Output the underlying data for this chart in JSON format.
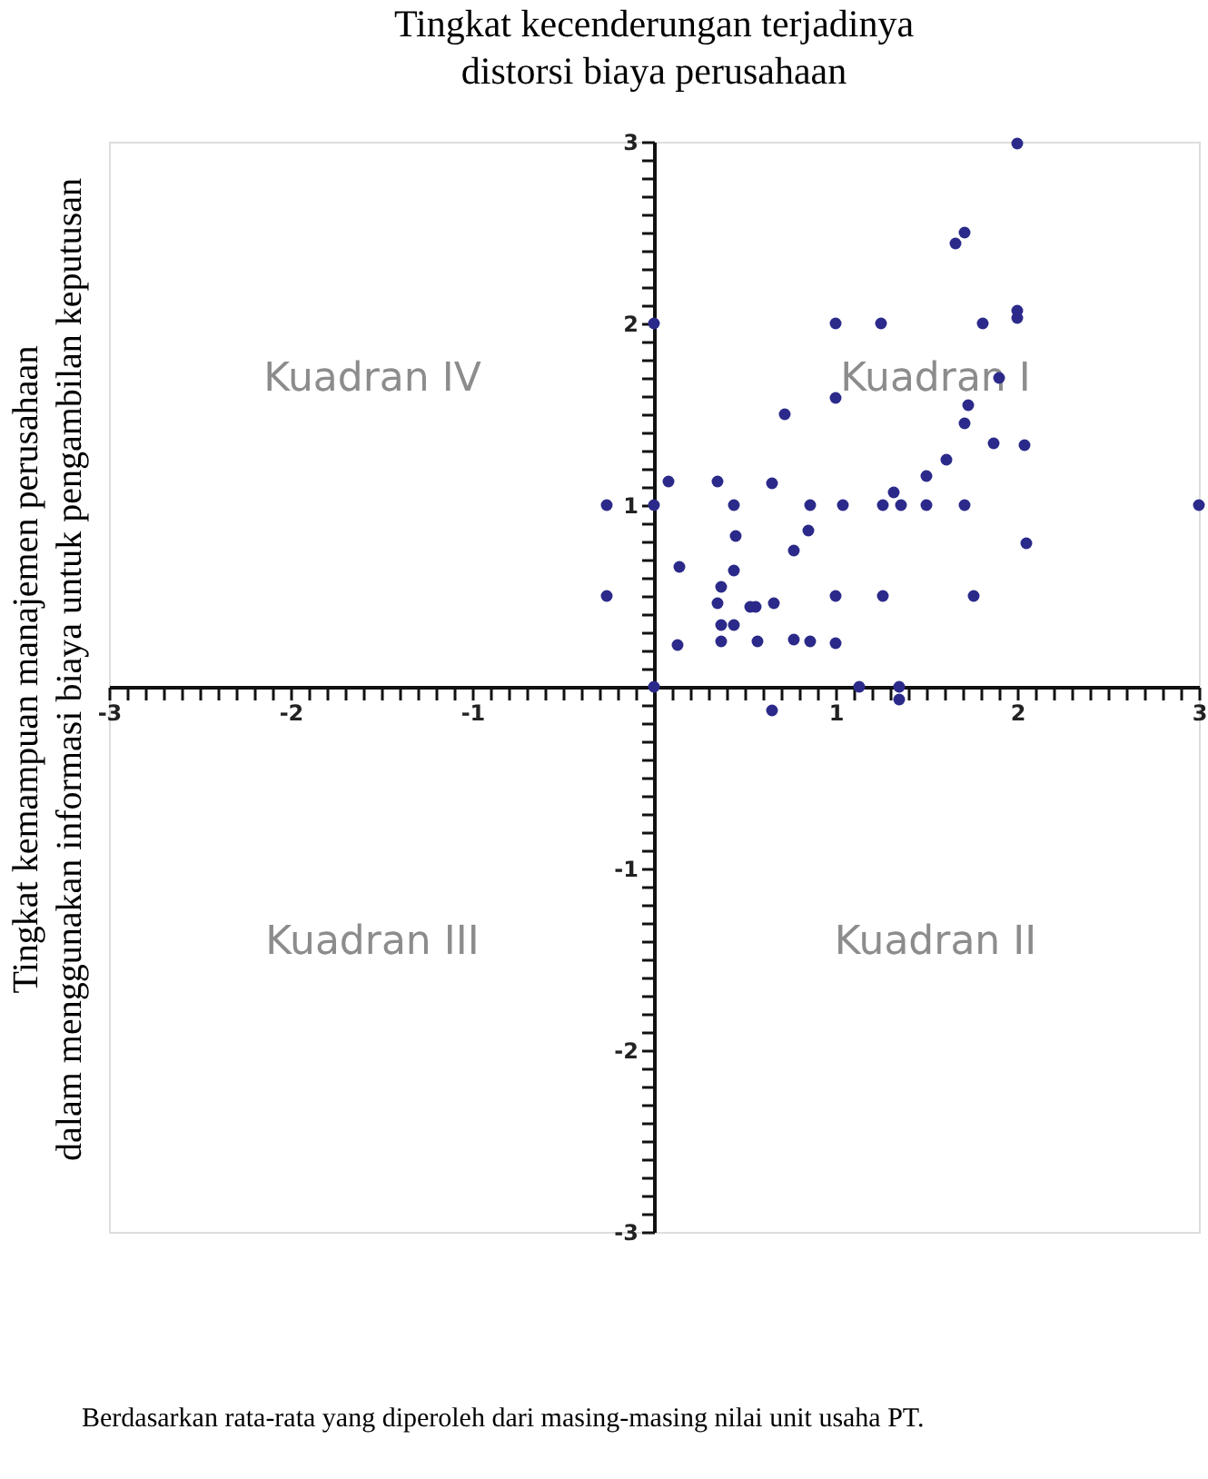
{
  "chart_data": {
    "type": "scatter",
    "title": "Tingkat kecenderungan terjadinya\ndistorsi biaya perusahaan",
    "ylabel": "Tingkat kemampuan manajemen perusahaan\ndalam menggunakan informasi biaya untuk pengambilan keputusan",
    "annotations": [
      "Kuadran IV",
      "Kuadran I",
      "Kuadran III",
      "Kuadran II",
      "Berdasarkan rata-rata yang diperoleh dari masing-masing nilai unit usaha PT."
    ],
    "x": [
      -0.26,
      -0.26,
      0,
      0,
      0,
      0.08,
      0.14,
      0.13,
      0.35,
      0.44,
      0.45,
      0.44,
      0.37,
      0.35,
      0.37,
      0.44,
      0.37,
      0.53,
      0.56,
      0.66,
      0.57,
      0.65,
      0.72,
      0.86,
      0.85,
      0.77,
      0.77,
      0.86,
      0.65,
      1.0,
      1.0,
      1.04,
      1.0,
      1.0,
      1.25,
      1.26,
      1.26,
      1.13,
      1.32,
      1.36,
      1.35,
      1.35,
      2.0,
      1.66,
      1.71,
      1.81,
      2.0,
      2.0,
      1.9,
      1.73,
      1.71,
      1.87,
      2.04,
      1.61,
      1.5,
      1.5,
      1.71,
      3.0,
      2.05,
      1.76
    ],
    "series": [
      {
        "color": "#2b2a8a",
        "values": [
          1.0,
          0.5,
          2.0,
          1.0,
          0.0,
          1.13,
          0.66,
          0.23,
          1.13,
          1.0,
          0.83,
          0.64,
          0.55,
          0.46,
          0.34,
          0.34,
          0.25,
          0.44,
          0.44,
          0.46,
          0.25,
          1.12,
          1.5,
          1.0,
          0.86,
          0.75,
          0.26,
          0.25,
          -0.13,
          2.0,
          1.59,
          1.0,
          0.5,
          0.24,
          2.0,
          1.0,
          0.5,
          0.0,
          1.07,
          1.0,
          0.0,
          -0.07,
          2.99,
          2.44,
          2.5,
          2.0,
          2.07,
          2.03,
          1.7,
          1.55,
          1.45,
          1.34,
          1.33,
          1.25,
          1.16,
          1.0,
          1.0,
          1.0,
          0.79,
          0.5
        ]
      }
    ],
    "xlim": [
      -3,
      3
    ],
    "ylim": [
      -3,
      3
    ],
    "xticks": [
      -3,
      {
        "value": -2.9,
        "label": null
      },
      {
        "value": -2.8,
        "label": null
      },
      {
        "value": -2.7,
        "label": null
      },
      {
        "value": -2.6,
        "label": null
      },
      {
        "value": -2.5,
        "label": null
      },
      {
        "value": -2.4,
        "label": null
      },
      {
        "value": -2.3,
        "label": null
      },
      {
        "value": -2.2,
        "label": null
      },
      {
        "value": -2.1,
        "label": null
      },
      -2,
      {
        "value": -1.9,
        "label": null
      },
      {
        "value": -1.8,
        "label": null
      },
      {
        "value": -1.7,
        "label": null
      },
      {
        "value": -1.6,
        "label": null
      },
      {
        "value": -1.5,
        "label": null
      },
      {
        "value": -1.4,
        "label": null
      },
      {
        "value": -1.3,
        "label": null
      },
      {
        "value": -1.2,
        "label": null
      },
      {
        "value": -1.1,
        "label": null
      },
      -1,
      {
        "value": -0.9,
        "label": null
      },
      {
        "value": -0.8,
        "label": null
      },
      {
        "value": -0.7,
        "label": null
      },
      {
        "value": -0.6,
        "label": null
      },
      {
        "value": -0.5,
        "label": null
      },
      {
        "value": -0.4,
        "label": null
      },
      {
        "value": -0.3,
        "label": null
      },
      {
        "value": -0.2,
        "label": null
      },
      {
        "value": -0.1,
        "label": null
      },
      {
        "value": 0,
        "label": null
      },
      {
        "value": 0.1,
        "label": null
      },
      {
        "value": 0.2,
        "label": null
      },
      {
        "value": 0.3,
        "label": null
      },
      {
        "value": 0.4,
        "label": null
      },
      {
        "value": 0.5,
        "label": null
      },
      {
        "value": 0.6,
        "label": null
      },
      {
        "value": 0.7,
        "label": null
      },
      {
        "value": 0.8,
        "label": null
      },
      {
        "value": 0.9,
        "label": null
      },
      1,
      {
        "value": 1.1,
        "label": null
      },
      {
        "value": 1.2,
        "label": null
      },
      {
        "value": 1.3,
        "label": null
      },
      {
        "value": 1.4,
        "label": null
      },
      {
        "value": 1.5,
        "label": null
      },
      {
        "value": 1.6,
        "label": null
      },
      {
        "value": 1.7,
        "label": null
      },
      {
        "value": 1.8,
        "label": null
      },
      {
        "value": 1.9,
        "label": null
      },
      2,
      {
        "value": 2.1,
        "label": null
      },
      {
        "value": 2.2,
        "label": null
      },
      {
        "value": 2.3,
        "label": null
      },
      {
        "value": 2.4,
        "label": null
      },
      {
        "value": 2.5,
        "label": null
      },
      {
        "value": 2.6,
        "label": null
      },
      {
        "value": 2.7,
        "label": null
      },
      {
        "value": 2.8,
        "label": null
      },
      {
        "value": 2.9,
        "label": null
      },
      3
    ],
    "yticks": [
      -3,
      {
        "value": -2.9,
        "label": null
      },
      {
        "value": -2.8,
        "label": null
      },
      {
        "value": -2.7,
        "label": null
      },
      {
        "value": -2.6,
        "label": null
      },
      {
        "value": -2.5,
        "label": null
      },
      {
        "value": -2.4,
        "label": null
      },
      {
        "value": -2.3,
        "label": null
      },
      {
        "value": -2.2,
        "label": null
      },
      {
        "value": -2.1,
        "label": null
      },
      -2,
      {
        "value": -1.9,
        "label": null
      },
      {
        "value": -1.8,
        "label": null
      },
      {
        "value": -1.7,
        "label": null
      },
      {
        "value": -1.6,
        "label": null
      },
      {
        "value": -1.5,
        "label": null
      },
      {
        "value": -1.4,
        "label": null
      },
      {
        "value": -1.3,
        "label": null
      },
      {
        "value": -1.2,
        "label": null
      },
      {
        "value": -1.1,
        "label": null
      },
      -1,
      {
        "value": -0.9,
        "label": null
      },
      {
        "value": -0.8,
        "label": null
      },
      {
        "value": -0.7,
        "label": null
      },
      {
        "value": -0.6,
        "label": null
      },
      {
        "value": -0.5,
        "label": null
      },
      {
        "value": -0.4,
        "label": null
      },
      {
        "value": -0.3,
        "label": null
      },
      {
        "value": -0.2,
        "label": null
      },
      {
        "value": -0.1,
        "label": null
      },
      {
        "value": 0,
        "label": null
      },
      {
        "value": 0.1,
        "label": null
      },
      {
        "value": 0.2,
        "label": null
      },
      {
        "value": 0.3,
        "label": null
      },
      {
        "value": 0.4,
        "label": null
      },
      {
        "value": 0.5,
        "label": null
      },
      {
        "value": 0.6,
        "label": null
      },
      {
        "value": 0.7,
        "label": null
      },
      {
        "value": 0.8,
        "label": null
      },
      {
        "value": 0.9,
        "label": null
      },
      1,
      {
        "value": 1.1,
        "label": null
      },
      {
        "value": 1.2,
        "label": null
      },
      {
        "value": 1.3,
        "label": null
      },
      {
        "value": 1.4,
        "label": null
      },
      {
        "value": 1.5,
        "label": null
      },
      {
        "value": 1.6,
        "label": null
      },
      {
        "value": 1.7,
        "label": null
      },
      {
        "value": 1.8,
        "label": null
      },
      {
        "value": 1.9,
        "label": null
      },
      2,
      {
        "value": 2.1,
        "label": null
      },
      {
        "value": 2.2,
        "label": null
      },
      {
        "value": 2.3,
        "label": null
      },
      {
        "value": 2.4,
        "label": null
      },
      {
        "value": 2.5,
        "label": null
      },
      {
        "value": 2.6,
        "label": null
      },
      {
        "value": 2.7,
        "label": null
      },
      {
        "value": 2.8,
        "label": null
      },
      {
        "value": 2.9,
        "label": null
      },
      3
    ],
    "grid": false,
    "legend": false,
    "marker": "circle"
  }
}
